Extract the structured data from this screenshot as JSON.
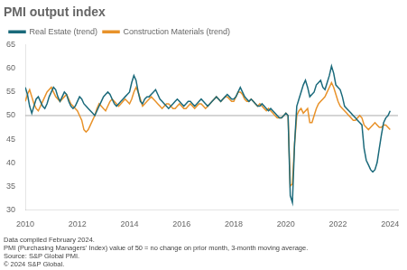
{
  "chart_data": {
    "type": "line",
    "title": "PMI output index",
    "legend": "upper left",
    "grid": false,
    "xlim": [
      2010.0,
      2024.3
    ],
    "xticks": [
      2010,
      2012,
      2014,
      2016,
      2018,
      2020,
      2022,
      2024
    ],
    "ylim": [
      30,
      65
    ],
    "yticks": [
      30,
      35,
      40,
      45,
      50,
      55,
      60,
      65
    ],
    "reference_line": {
      "value": 50,
      "color": "#aaaaaa"
    },
    "footnotes": [
      "Data compiled February 2024.",
      "PMI (Purchasing Managers' Index) value of 50 = no change on prior month, 3-month moving average.",
      "Source: S&P Global PMI.",
      "© 2024 S&P Global."
    ],
    "x": [
      2010.0,
      2010.083,
      2010.167,
      2010.25,
      2010.333,
      2010.417,
      2010.5,
      2010.583,
      2010.667,
      2010.75,
      2010.833,
      2010.917,
      2011.0,
      2011.083,
      2011.167,
      2011.25,
      2011.333,
      2011.417,
      2011.5,
      2011.583,
      2011.667,
      2011.75,
      2011.833,
      2011.917,
      2012.0,
      2012.083,
      2012.167,
      2012.25,
      2012.333,
      2012.417,
      2012.5,
      2012.583,
      2012.667,
      2012.75,
      2012.833,
      2012.917,
      2013.0,
      2013.083,
      2013.167,
      2013.25,
      2013.333,
      2013.417,
      2013.5,
      2013.583,
      2013.667,
      2013.75,
      2013.833,
      2013.917,
      2014.0,
      2014.083,
      2014.167,
      2014.25,
      2014.333,
      2014.417,
      2014.5,
      2014.583,
      2014.667,
      2014.75,
      2014.833,
      2014.917,
      2015.0,
      2015.083,
      2015.167,
      2015.25,
      2015.333,
      2015.417,
      2015.5,
      2015.583,
      2015.667,
      2015.75,
      2015.833,
      2015.917,
      2016.0,
      2016.083,
      2016.167,
      2016.25,
      2016.333,
      2016.417,
      2016.5,
      2016.583,
      2016.667,
      2016.75,
      2016.833,
      2016.917,
      2017.0,
      2017.083,
      2017.167,
      2017.25,
      2017.333,
      2017.417,
      2017.5,
      2017.583,
      2017.667,
      2017.75,
      2017.833,
      2017.917,
      2018.0,
      2018.083,
      2018.167,
      2018.25,
      2018.333,
      2018.417,
      2018.5,
      2018.583,
      2018.667,
      2018.75,
      2018.833,
      2018.917,
      2019.0,
      2019.083,
      2019.167,
      2019.25,
      2019.333,
      2019.417,
      2019.5,
      2019.583,
      2019.667,
      2019.75,
      2019.833,
      2019.917,
      2020.0,
      2020.083,
      2020.167,
      2020.25,
      2020.333,
      2020.417,
      2020.5,
      2020.583,
      2020.667,
      2020.75,
      2020.833,
      2020.917,
      2021.0,
      2021.083,
      2021.167,
      2021.25,
      2021.333,
      2021.417,
      2021.5,
      2021.583,
      2021.667,
      2021.75,
      2021.833,
      2021.917,
      2022.0,
      2022.083,
      2022.167,
      2022.25,
      2022.333,
      2022.417,
      2022.5,
      2022.583,
      2022.667,
      2022.75,
      2022.833,
      2022.917,
      2023.0,
      2023.083,
      2023.167,
      2023.25,
      2023.333,
      2023.417,
      2023.5,
      2023.583,
      2023.667,
      2023.75,
      2023.833,
      2023.917,
      2024.0
    ],
    "series": [
      {
        "name": "Real Estate (trend)",
        "color": "#1b6a7b",
        "values": [
          56.0,
          54.5,
          52.0,
          50.5,
          52.0,
          53.5,
          54.0,
          53.0,
          52.0,
          51.5,
          52.5,
          54.0,
          55.0,
          56.0,
          55.5,
          54.0,
          53.0,
          54.0,
          55.0,
          54.5,
          53.0,
          52.0,
          51.5,
          52.0,
          53.0,
          54.0,
          53.5,
          52.5,
          52.0,
          51.5,
          51.0,
          50.5,
          50.0,
          51.0,
          52.0,
          53.0,
          54.0,
          54.5,
          55.0,
          54.5,
          53.5,
          52.5,
          52.0,
          52.5,
          53.0,
          53.5,
          54.0,
          54.5,
          55.0,
          57.0,
          58.5,
          57.5,
          55.0,
          53.0,
          52.5,
          53.5,
          54.0,
          54.0,
          54.5,
          55.0,
          55.5,
          54.5,
          53.5,
          53.0,
          52.5,
          52.0,
          51.5,
          52.0,
          52.5,
          53.0,
          53.5,
          53.0,
          52.5,
          52.0,
          52.5,
          53.0,
          53.0,
          52.5,
          52.0,
          52.5,
          53.0,
          53.5,
          53.0,
          52.5,
          52.0,
          52.5,
          53.0,
          53.5,
          54.0,
          53.5,
          53.0,
          53.5,
          54.0,
          54.5,
          54.0,
          53.5,
          53.5,
          54.0,
          55.0,
          56.0,
          55.0,
          54.0,
          53.5,
          53.0,
          53.5,
          53.0,
          52.5,
          52.0,
          52.0,
          52.5,
          52.0,
          51.5,
          51.0,
          51.5,
          51.0,
          50.5,
          50.0,
          49.5,
          49.5,
          50.0,
          50.5,
          50.0,
          33.0,
          31.5,
          44.0,
          52.0,
          53.5,
          55.0,
          56.5,
          57.5,
          56.0,
          54.0,
          54.5,
          55.0,
          56.5,
          57.0,
          57.5,
          56.0,
          55.5,
          57.0,
          58.5,
          60.5,
          59.0,
          56.5,
          56.0,
          55.5,
          54.0,
          52.0,
          51.5,
          51.0,
          50.5,
          50.0,
          49.5,
          49.0,
          48.5,
          48.0,
          43.0,
          40.5,
          39.5,
          38.5,
          38.0,
          38.5,
          40.0,
          43.0,
          46.0,
          48.5,
          49.5,
          50.0,
          51.0
        ]
      },
      {
        "name": "Construction Materials (trend)",
        "color": "#e8922a",
        "values": [
          53.0,
          54.5,
          55.5,
          54.0,
          52.5,
          51.5,
          51.0,
          52.0,
          53.0,
          54.0,
          55.0,
          55.5,
          56.0,
          55.0,
          54.0,
          53.5,
          53.0,
          53.5,
          54.0,
          54.5,
          53.5,
          52.5,
          52.0,
          51.5,
          51.0,
          50.0,
          49.0,
          47.0,
          46.5,
          47.0,
          48.0,
          49.0,
          50.0,
          51.5,
          52.5,
          52.0,
          51.5,
          51.0,
          52.0,
          53.0,
          53.5,
          53.0,
          52.5,
          52.0,
          52.5,
          53.0,
          53.5,
          53.0,
          52.5,
          53.5,
          55.0,
          56.0,
          55.0,
          53.5,
          52.0,
          52.5,
          53.0,
          53.5,
          54.0,
          53.5,
          53.0,
          52.5,
          52.0,
          51.5,
          52.0,
          52.5,
          52.5,
          52.0,
          51.5,
          51.5,
          52.0,
          52.5,
          52.0,
          51.5,
          51.5,
          52.0,
          52.5,
          52.0,
          51.5,
          52.0,
          52.5,
          52.5,
          52.0,
          51.5,
          52.0,
          52.5,
          53.0,
          53.5,
          54.0,
          53.5,
          53.0,
          53.5,
          54.0,
          54.0,
          53.5,
          53.0,
          53.0,
          54.0,
          55.0,
          55.0,
          54.5,
          53.5,
          53.0,
          53.0,
          53.5,
          53.0,
          52.5,
          52.0,
          52.5,
          52.0,
          51.5,
          51.0,
          51.5,
          51.0,
          50.5,
          50.0,
          49.5,
          49.5,
          49.5,
          50.0,
          50.5,
          50.0,
          35.0,
          35.5,
          44.0,
          50.0,
          51.0,
          51.5,
          50.5,
          51.0,
          51.5,
          48.5,
          48.5,
          50.0,
          51.5,
          52.5,
          53.0,
          53.5,
          54.0,
          55.0,
          56.0,
          57.0,
          56.0,
          54.5,
          53.0,
          52.0,
          51.5,
          51.0,
          50.5,
          50.0,
          49.5,
          49.0,
          49.0,
          49.5,
          50.0,
          49.5,
          48.0,
          47.5,
          47.0,
          47.5,
          48.0,
          48.5,
          48.0,
          47.5,
          47.5,
          48.0,
          48.0,
          47.5,
          47.0
        ]
      }
    ]
  }
}
